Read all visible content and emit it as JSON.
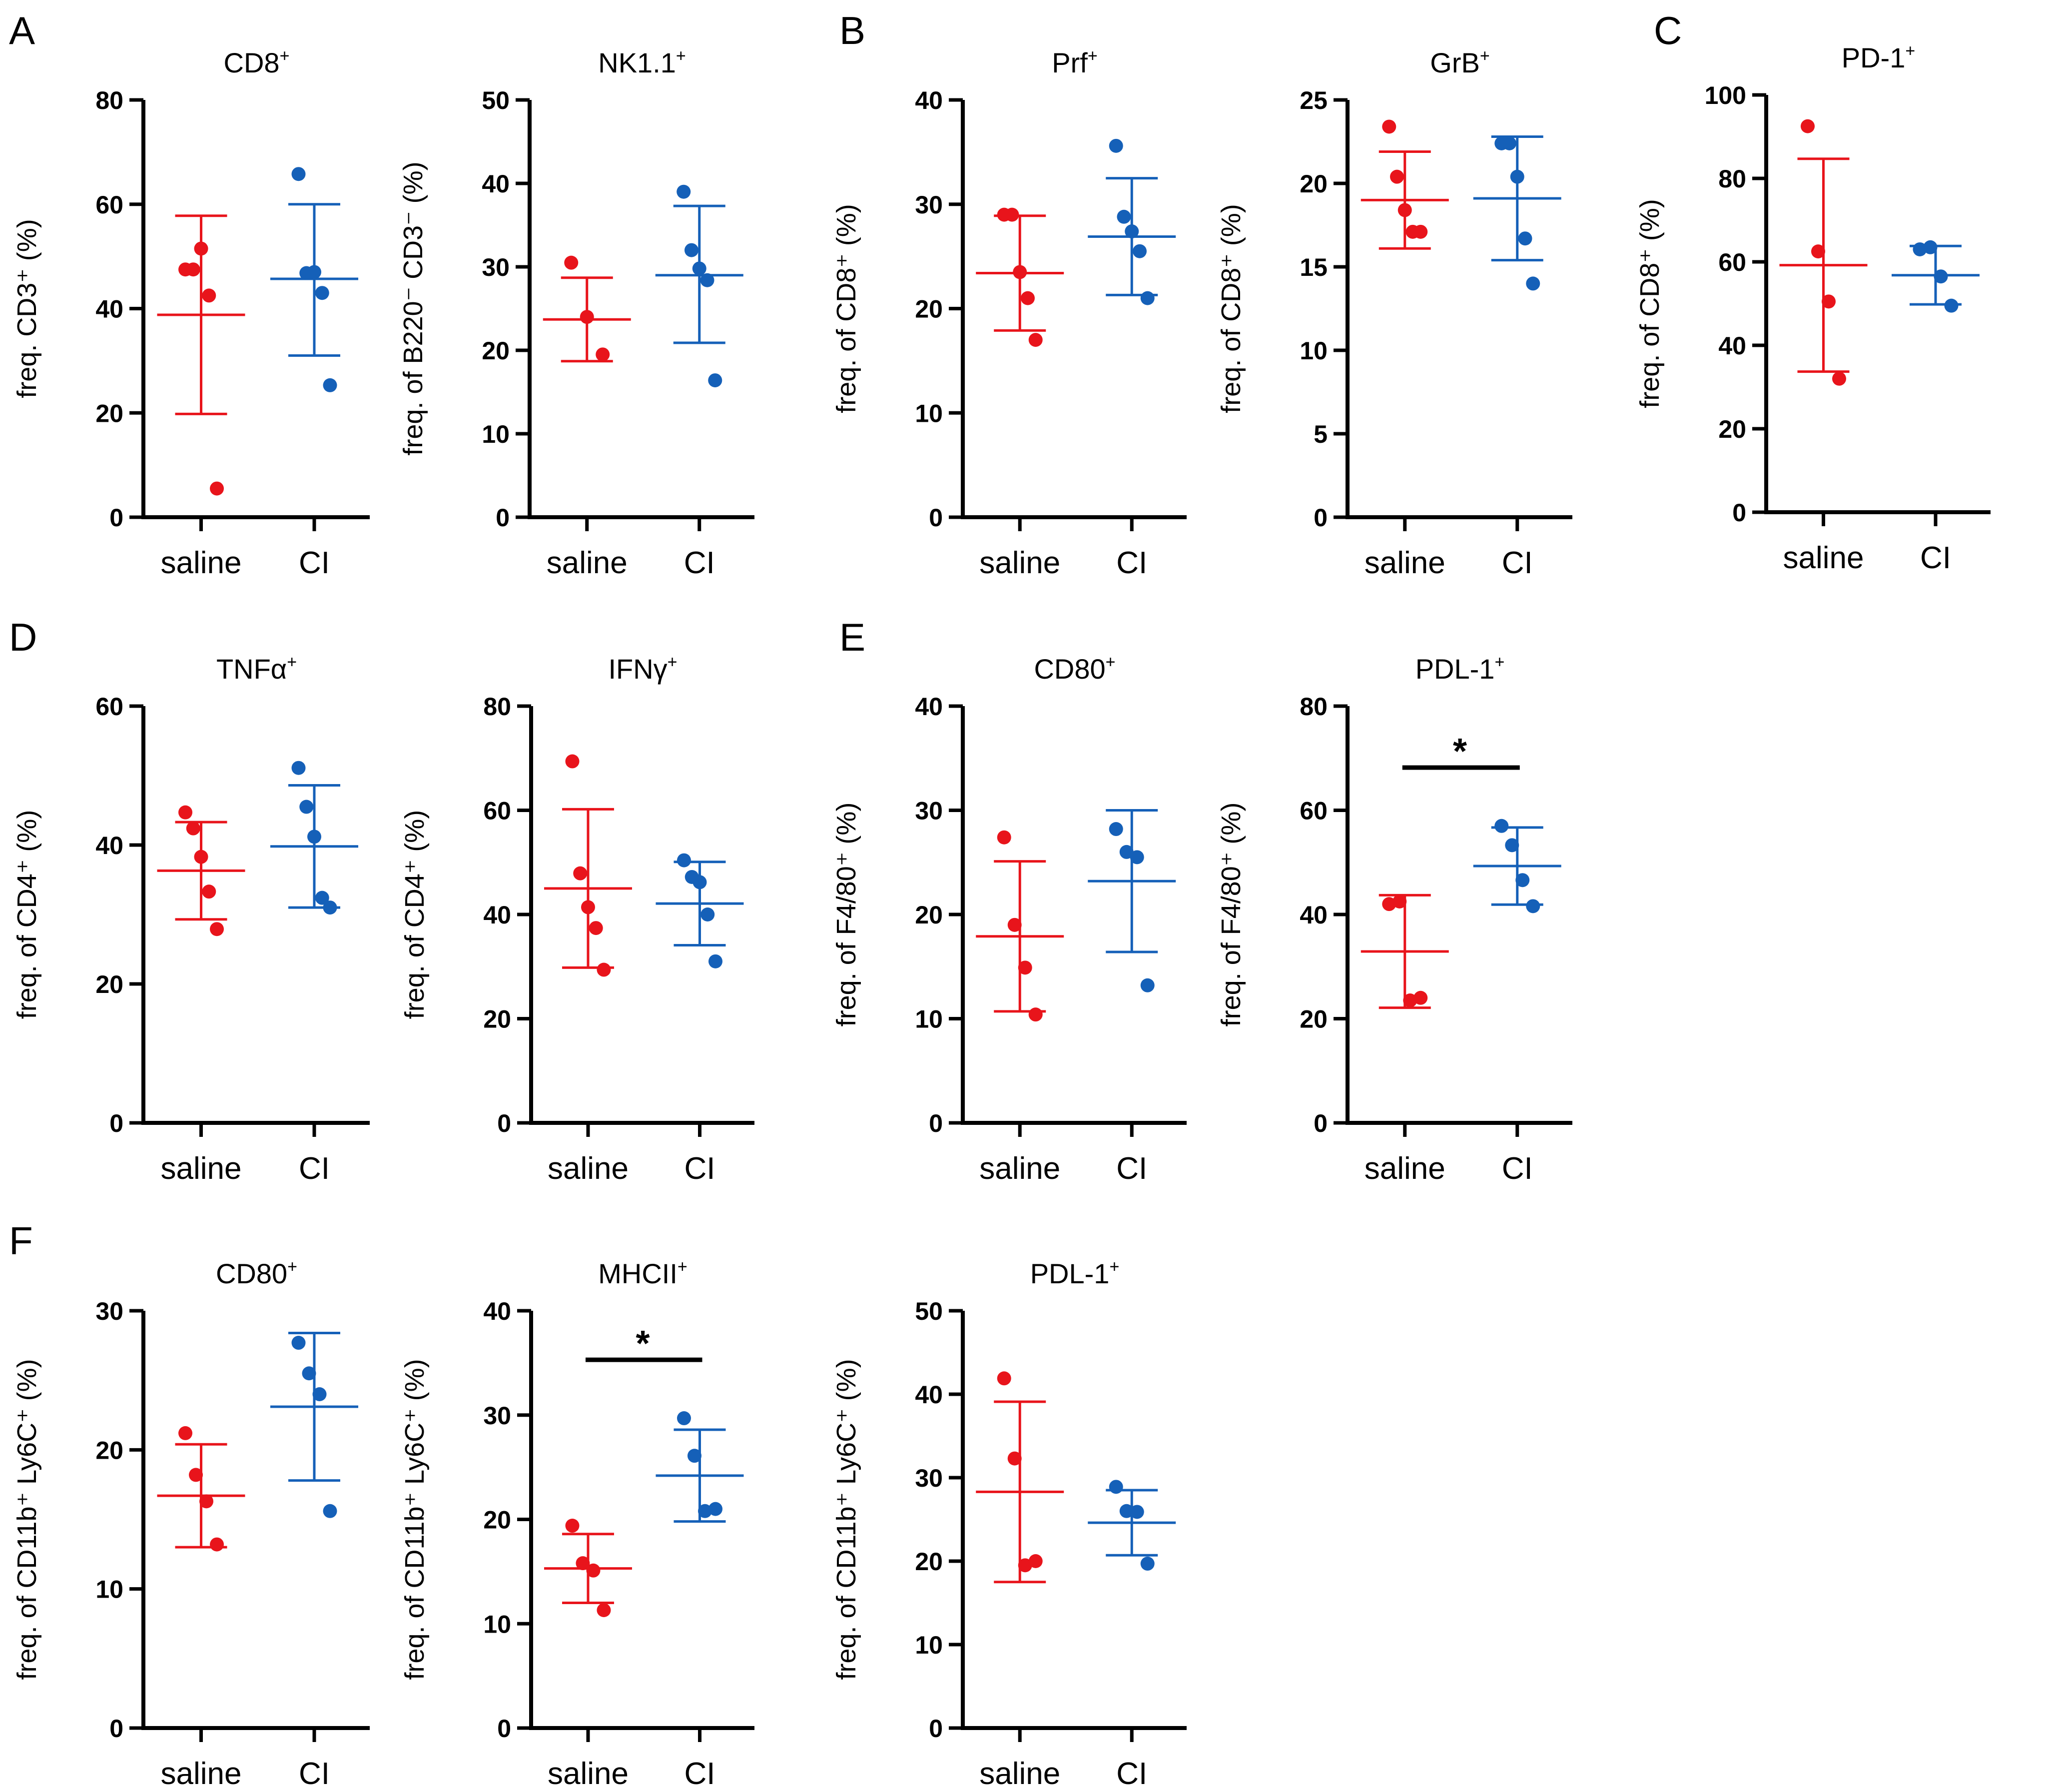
{
  "panel_letters": [
    "A",
    "B",
    "C",
    "D",
    "E",
    "F"
  ],
  "colors": {
    "saline": "#e8141b",
    "CI": "#1560b8",
    "axis": "#000000"
  },
  "chart_data": [
    {
      "type": "scatter",
      "panel": "A",
      "title": "CD8",
      "title_sup": "+",
      "ylabel": "freq. CD3⁺ (%)",
      "ylim": [
        0,
        80
      ],
      "yticks": [
        "0",
        "20",
        "40",
        "60",
        "80"
      ],
      "categories": [
        "saline",
        "CI"
      ],
      "series": [
        {
          "name": "saline",
          "mean": 38.8,
          "sd_upper": 57.8,
          "sd_lower": 19.8,
          "points": [
            47.5,
            47.5,
            51.5,
            42.5,
            5.5
          ]
        },
        {
          "name": "CI",
          "mean": 45.7,
          "sd_upper": 60.0,
          "sd_lower": 31.0,
          "points": [
            65.8,
            46.8,
            47.0,
            43.0,
            25.3
          ]
        }
      ]
    },
    {
      "type": "scatter",
      "panel": "A",
      "title": "NK1.1",
      "title_sup": "+",
      "ylabel": "freq. of B220⁻ CD3⁻ (%)",
      "ylim": [
        0,
        50
      ],
      "yticks": [
        "0",
        "10",
        "20",
        "30",
        "40",
        "50"
      ],
      "categories": [
        "saline",
        "CI"
      ],
      "series": [
        {
          "name": "saline",
          "mean": 23.7,
          "sd_upper": 28.7,
          "sd_lower": 18.7,
          "points": [
            30.5,
            24.0,
            19.5
          ]
        },
        {
          "name": "CI",
          "mean": 29.0,
          "sd_upper": 37.3,
          "sd_lower": 20.9,
          "points": [
            39.0,
            32.0,
            29.8,
            28.4,
            16.4
          ]
        }
      ]
    },
    {
      "type": "scatter",
      "panel": "B",
      "title": "Prf",
      "title_sup": "+",
      "ylabel": "freq. of CD8⁺ (%)",
      "ylim": [
        0,
        40
      ],
      "yticks": [
        "0",
        "10",
        "20",
        "30",
        "40"
      ],
      "categories": [
        "saline",
        "CI"
      ],
      "series": [
        {
          "name": "saline",
          "mean": 23.4,
          "sd_upper": 28.9,
          "sd_lower": 17.9,
          "points": [
            29.0,
            29.0,
            23.5,
            21.0,
            17.0
          ]
        },
        {
          "name": "CI",
          "mean": 26.9,
          "sd_upper": 32.5,
          "sd_lower": 21.3,
          "points": [
            35.6,
            28.8,
            27.4,
            25.5,
            21.0
          ]
        }
      ]
    },
    {
      "type": "scatter",
      "panel": "B",
      "title": "GrB",
      "title_sup": "+",
      "ylabel": "freq. of CD8⁺ (%)",
      "ylim": [
        0,
        25
      ],
      "yticks": [
        "0",
        "5",
        "10",
        "15",
        "20",
        "25"
      ],
      "categories": [
        "saline",
        "CI"
      ],
      "series": [
        {
          "name": "saline",
          "mean": 19.0,
          "sd_upper": 21.9,
          "sd_lower": 16.1,
          "points": [
            23.4,
            20.4,
            18.4,
            17.1,
            17.1
          ]
        },
        {
          "name": "CI",
          "mean": 19.1,
          "sd_upper": 22.8,
          "sd_lower": 15.4,
          "points": [
            22.4,
            22.4,
            20.4,
            16.7,
            14.0
          ]
        }
      ]
    },
    {
      "type": "scatter",
      "panel": "C",
      "title": "PD-1",
      "title_sup": "+",
      "ylabel": "freq. of CD8⁺ (%)",
      "ylim": [
        0,
        100
      ],
      "yticks": [
        "0",
        "20",
        "40",
        "60",
        "80",
        "100"
      ],
      "categories": [
        "saline",
        "CI"
      ],
      "series": [
        {
          "name": "saline",
          "mean": 59.2,
          "sd_upper": 84.7,
          "sd_lower": 33.7,
          "points": [
            92.5,
            62.5,
            50.5,
            32.0
          ]
        },
        {
          "name": "CI",
          "mean": 56.8,
          "sd_upper": 63.8,
          "sd_lower": 49.8,
          "points": [
            63.0,
            63.5,
            56.5,
            49.5
          ]
        }
      ]
    },
    {
      "type": "scatter",
      "panel": "D",
      "title": "TNFα",
      "title_sup": "+",
      "ylabel": "freq. of CD4⁺ (%)",
      "ylim": [
        0,
        60
      ],
      "yticks": [
        "0",
        "20",
        "40",
        "60"
      ],
      "categories": [
        "saline",
        "CI"
      ],
      "series": [
        {
          "name": "saline",
          "mean": 36.3,
          "sd_upper": 43.3,
          "sd_lower": 29.3,
          "points": [
            44.7,
            42.4,
            38.3,
            33.3,
            27.9
          ]
        },
        {
          "name": "CI",
          "mean": 39.8,
          "sd_upper": 48.6,
          "sd_lower": 31.0,
          "points": [
            51.1,
            45.5,
            41.2,
            32.4,
            31.0
          ]
        }
      ]
    },
    {
      "type": "scatter",
      "panel": "D",
      "title": "IFNγ",
      "title_sup": "+",
      "ylabel": "freq. of CD4⁺ (%)",
      "ylim": [
        0,
        80
      ],
      "yticks": [
        "0",
        "20",
        "40",
        "60",
        "80"
      ],
      "categories": [
        "saline",
        "CI"
      ],
      "series": [
        {
          "name": "saline",
          "mean": 45.0,
          "sd_upper": 60.2,
          "sd_lower": 29.8,
          "points": [
            69.4,
            47.9,
            41.4,
            37.4,
            29.4
          ]
        },
        {
          "name": "CI",
          "mean": 42.1,
          "sd_upper": 50.1,
          "sd_lower": 34.1,
          "points": [
            50.4,
            47.2,
            46.2,
            40.0,
            31.0
          ]
        }
      ]
    },
    {
      "type": "scatter",
      "panel": "E",
      "title": "CD80",
      "title_sup": "+",
      "ylabel": "freq. of F4/80⁺ (%)",
      "ylim": [
        0,
        40
      ],
      "yticks": [
        "0",
        "10",
        "20",
        "30",
        "40"
      ],
      "categories": [
        "saline",
        "CI"
      ],
      "series": [
        {
          "name": "saline",
          "mean": 17.9,
          "sd_upper": 25.1,
          "sd_lower": 10.7,
          "points": [
            27.4,
            19.0,
            14.9,
            10.4
          ]
        },
        {
          "name": "CI",
          "mean": 23.2,
          "sd_upper": 30.0,
          "sd_lower": 16.4,
          "points": [
            28.2,
            26.0,
            25.5,
            13.2
          ]
        }
      ]
    },
    {
      "type": "scatter",
      "panel": "E",
      "title": "PDL-1",
      "title_sup": "+",
      "ylabel": "freq. of F4/80⁺ (%)",
      "ylim": [
        0,
        80
      ],
      "yticks": [
        "0",
        "20",
        "40",
        "60",
        "80"
      ],
      "categories": [
        "saline",
        "CI"
      ],
      "significance": "*",
      "series": [
        {
          "name": "saline",
          "mean": 32.9,
          "sd_upper": 43.7,
          "sd_lower": 22.1,
          "points": [
            42.0,
            42.5,
            23.5,
            24.0
          ]
        },
        {
          "name": "CI",
          "mean": 49.3,
          "sd_upper": 56.7,
          "sd_lower": 41.9,
          "points": [
            57.0,
            53.3,
            46.6,
            41.6
          ]
        }
      ]
    },
    {
      "type": "scatter",
      "panel": "F",
      "title": "CD80",
      "title_sup": "+",
      "ylabel": "freq. of CD11b⁺ Ly6C⁺ (%)",
      "ylim": [
        0,
        30
      ],
      "yticks": [
        "0",
        "10",
        "20",
        "30"
      ],
      "categories": [
        "saline",
        "CI"
      ],
      "series": [
        {
          "name": "saline",
          "mean": 16.7,
          "sd_upper": 20.4,
          "sd_lower": 13.0,
          "points": [
            21.2,
            18.2,
            16.3,
            13.2
          ]
        },
        {
          "name": "CI",
          "mean": 23.1,
          "sd_upper": 28.4,
          "sd_lower": 17.8,
          "points": [
            27.7,
            25.5,
            24.0,
            15.6
          ]
        }
      ]
    },
    {
      "type": "scatter",
      "panel": "F",
      "title": "MHCII",
      "title_sup": "+",
      "ylabel": "freq. of CD11b⁺ Ly6C⁺ (%)",
      "ylim": [
        0,
        40
      ],
      "yticks": [
        "0",
        "10",
        "20",
        "30",
        "40"
      ],
      "categories": [
        "saline",
        "CI"
      ],
      "significance": "*",
      "series": [
        {
          "name": "saline",
          "mean": 15.3,
          "sd_upper": 18.6,
          "sd_lower": 12.0,
          "points": [
            19.4,
            15.8,
            15.1,
            11.3
          ]
        },
        {
          "name": "CI",
          "mean": 24.2,
          "sd_upper": 28.6,
          "sd_lower": 19.8,
          "points": [
            29.7,
            26.1,
            20.8,
            21.0
          ]
        }
      ]
    },
    {
      "type": "scatter",
      "panel": "F",
      "title": "PDL-1",
      "title_sup": "+",
      "ylabel": "freq. of CD11b⁺ Ly6C⁺ (%)",
      "ylim": [
        0,
        50
      ],
      "yticks": [
        "0",
        "10",
        "20",
        "30",
        "40",
        "50"
      ],
      "categories": [
        "saline",
        "CI"
      ],
      "series": [
        {
          "name": "saline",
          "mean": 28.3,
          "sd_upper": 39.1,
          "sd_lower": 17.5,
          "points": [
            41.9,
            32.3,
            19.5,
            20.0
          ]
        },
        {
          "name": "CI",
          "mean": 24.6,
          "sd_upper": 28.5,
          "sd_lower": 20.7,
          "points": [
            28.9,
            26.0,
            25.9,
            19.7
          ]
        }
      ]
    }
  ]
}
